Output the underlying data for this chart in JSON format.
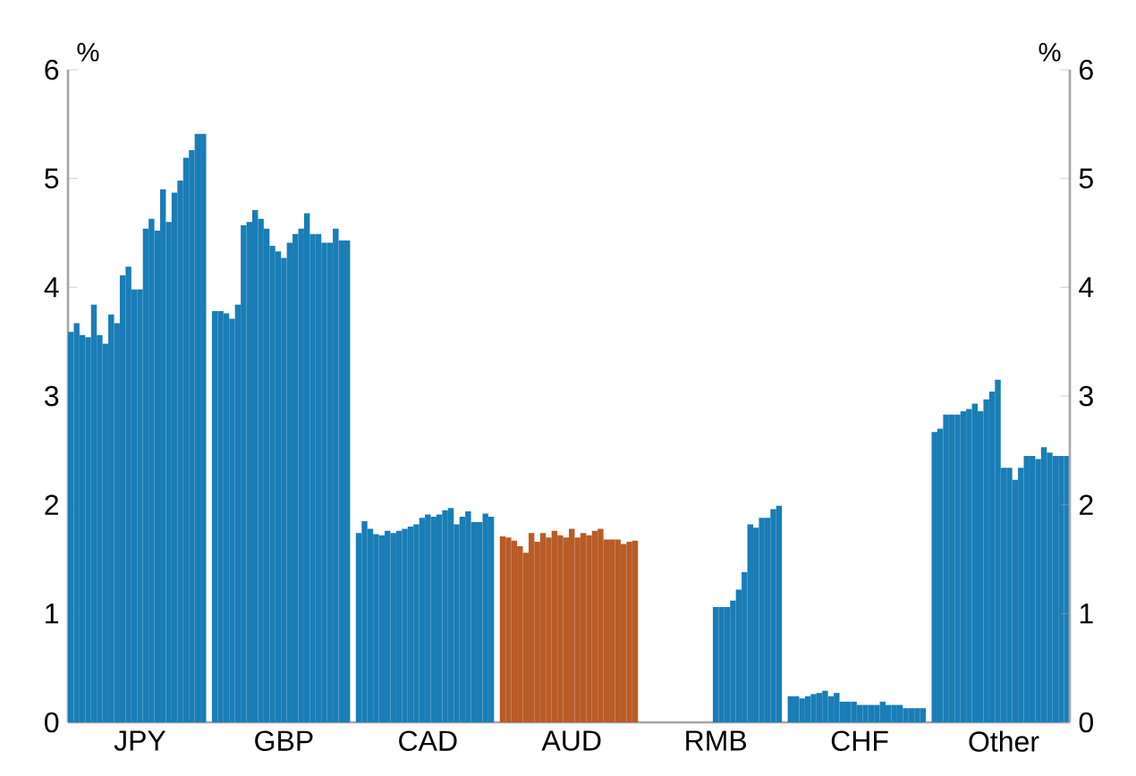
{
  "chart_data": {
    "type": "bar",
    "ylabel": "%",
    "y2label": "%",
    "categories": [
      null,
      null,
      null,
      null,
      null,
      null,
      null,
      null,
      null,
      null,
      null,
      null,
      "JPY",
      null,
      null,
      null,
      null,
      null,
      null,
      null,
      null,
      null,
      null,
      null,
      null,
      null,
      null,
      null,
      null,
      null,
      null,
      null,
      null,
      null,
      null,
      null,
      null,
      "GBP",
      null,
      null,
      null,
      null,
      null,
      null,
      null,
      null,
      null,
      null,
      null,
      null,
      null,
      null,
      null,
      null,
      null,
      null,
      null,
      null,
      null,
      null,
      null,
      null,
      "CAD",
      null,
      null,
      null,
      null,
      null,
      null,
      null,
      null,
      null,
      null,
      null,
      null,
      null,
      null,
      null,
      null,
      null,
      null,
      null,
      null,
      null,
      null,
      null,
      null,
      "AUD",
      null,
      null,
      null,
      null,
      null,
      null,
      null,
      null,
      null,
      null,
      null,
      null,
      null,
      null,
      null,
      null,
      null,
      null,
      null,
      null,
      null,
      null,
      null,
      null,
      "RMB",
      null,
      null,
      null,
      null,
      null,
      null,
      null,
      null,
      null,
      null,
      null,
      null,
      null,
      null,
      null,
      null,
      null,
      null,
      null,
      null,
      null,
      null,
      null,
      null,
      "CHF",
      null,
      null,
      null,
      null,
      null,
      null,
      null,
      null,
      null,
      null,
      null,
      null,
      null,
      null,
      null,
      null,
      null,
      null,
      null,
      null,
      null,
      null,
      null,
      null,
      "Other",
      null,
      null,
      null,
      null,
      null,
      null,
      null,
      null,
      null,
      null,
      null
    ],
    "values": [
      3.59,
      3.67,
      3.56,
      3.54,
      3.84,
      3.56,
      3.48,
      3.75,
      3.67,
      4.11,
      4.19,
      3.98,
      3.98,
      4.54,
      4.63,
      4.52,
      4.9,
      4.6,
      4.87,
      4.98,
      5.19,
      5.26,
      5.41,
      5.41,
      null,
      3.78,
      3.78,
      3.76,
      3.71,
      3.84,
      4.57,
      4.6,
      4.71,
      4.63,
      4.54,
      4.38,
      4.33,
      4.27,
      4.41,
      4.49,
      4.54,
      4.68,
      4.49,
      4.49,
      4.41,
      4.41,
      4.54,
      4.43,
      4.43,
      null,
      1.74,
      1.85,
      1.78,
      1.73,
      1.72,
      1.76,
      1.74,
      1.76,
      1.78,
      1.8,
      1.82,
      1.88,
      1.91,
      1.89,
      1.91,
      1.95,
      1.97,
      1.82,
      1.89,
      1.94,
      1.84,
      1.84,
      1.92,
      1.89,
      null,
      1.71,
      1.7,
      1.67,
      1.62,
      1.56,
      1.74,
      1.66,
      1.74,
      1.7,
      1.76,
      1.72,
      1.7,
      1.78,
      1.7,
      1.74,
      1.72,
      1.76,
      1.78,
      1.68,
      1.68,
      1.68,
      1.64,
      1.66,
      1.67,
      null,
      null,
      null,
      null,
      null,
      null,
      null,
      null,
      null,
      null,
      null,
      null,
      null,
      1.06,
      1.06,
      1.06,
      1.12,
      1.22,
      1.38,
      1.82,
      1.79,
      1.88,
      1.88,
      1.96,
      1.99,
      null,
      0.24,
      0.24,
      0.22,
      0.24,
      0.26,
      0.27,
      0.29,
      0.24,
      0.27,
      0.19,
      0.19,
      0.19,
      0.16,
      0.16,
      0.16,
      0.16,
      0.19,
      0.16,
      0.16,
      0.16,
      0.13,
      0.13,
      0.13,
      0.13,
      null,
      2.67,
      2.7,
      2.83,
      2.83,
      2.83,
      2.86,
      2.88,
      2.93,
      2.86,
      2.97,
      3.04,
      3.15,
      2.34,
      2.34,
      2.23,
      2.34,
      2.45,
      2.45,
      2.42,
      2.53,
      2.48,
      2.45,
      2.45,
      2.45
    ],
    "colors": [
      "#1a7db6",
      "#1a7db6",
      "#1a7db6",
      "#1a7db6",
      "#1a7db6",
      "#1a7db6",
      "#1a7db6",
      "#1a7db6",
      "#1a7db6",
      "#1a7db6",
      "#1a7db6",
      "#1a7db6",
      "#1a7db6",
      "#1a7db6",
      "#1a7db6",
      "#1a7db6",
      "#1a7db6",
      "#1a7db6",
      "#1a7db6",
      "#1a7db6",
      "#1a7db6",
      "#1a7db6",
      "#1a7db6",
      "#1a7db6",
      "#1a7db6",
      "#1a7db6",
      "#1a7db6",
      "#1a7db6",
      "#1a7db6",
      "#1a7db6",
      "#1a7db6",
      "#1a7db6",
      "#1a7db6",
      "#1a7db6",
      "#1a7db6",
      "#1a7db6",
      "#1a7db6",
      "#1a7db6",
      "#1a7db6",
      "#1a7db6",
      "#1a7db6",
      "#1a7db6",
      "#1a7db6",
      "#1a7db6",
      "#1a7db6",
      "#1a7db6",
      "#1a7db6",
      "#1a7db6",
      "#1a7db6",
      "#1a7db6",
      "#1a7db6",
      "#1a7db6",
      "#1a7db6",
      "#1a7db6",
      "#1a7db6",
      "#1a7db6",
      "#1a7db6",
      "#1a7db6",
      "#1a7db6",
      "#1a7db6",
      "#1a7db6",
      "#1a7db6",
      "#1a7db6",
      "#1a7db6",
      "#1a7db6",
      "#1a7db6",
      "#1a7db6",
      "#1a7db6",
      "#1a7db6",
      "#1a7db6",
      "#1a7db6",
      "#1a7db6",
      "#1a7db6",
      "#1a7db6",
      "#1a7db6",
      "#b85b27",
      "#b85b27",
      "#b85b27",
      "#b85b27",
      "#b85b27",
      "#b85b27",
      "#b85b27",
      "#b85b27",
      "#b85b27",
      "#b85b27",
      "#b85b27",
      "#b85b27",
      "#b85b27",
      "#b85b27",
      "#b85b27",
      "#b85b27",
      "#b85b27",
      "#b85b27",
      "#b85b27",
      "#b85b27",
      "#b85b27",
      "#b85b27",
      "#b85b27",
      "#b85b27",
      "#1a7db6",
      "#1a7db6",
      "#1a7db6",
      "#1a7db6",
      "#1a7db6",
      "#1a7db6",
      "#1a7db6",
      "#1a7db6",
      "#1a7db6",
      "#1a7db6",
      "#1a7db6",
      "#1a7db6",
      "#1a7db6",
      "#1a7db6",
      "#1a7db6",
      "#1a7db6",
      "#1a7db6",
      "#1a7db6",
      "#1a7db6",
      "#1a7db6",
      "#1a7db6",
      "#1a7db6",
      "#1a7db6",
      "#1a7db6",
      "#1a7db6",
      "#1a7db6",
      "#1a7db6",
      "#1a7db6",
      "#1a7db6",
      "#1a7db6",
      "#1a7db6",
      "#1a7db6",
      "#1a7db6",
      "#1a7db6",
      "#1a7db6",
      "#1a7db6",
      "#1a7db6",
      "#1a7db6",
      "#1a7db6",
      "#1a7db6",
      "#1a7db6",
      "#1a7db6",
      "#1a7db6",
      "#1a7db6",
      "#1a7db6",
      "#1a7db6",
      "#1a7db6",
      "#1a7db6",
      "#1a7db6",
      "#1a7db6",
      "#1a7db6",
      "#1a7db6",
      "#1a7db6",
      "#1a7db6",
      "#1a7db6",
      "#1a7db6",
      "#1a7db6",
      "#1a7db6",
      "#1a7db6",
      "#1a7db6",
      "#1a7db6",
      "#1a7db6",
      "#1a7db6",
      "#1a7db6",
      "#1a7db6",
      "#1a7db6",
      "#1a7db6",
      "#1a7db6",
      "#1a7db6",
      "#1a7db6",
      "#1a7db6",
      "#1a7db6",
      "#1a7db6",
      "#1a7db6",
      "#1a7db6"
    ],
    "ylim": [
      0,
      6
    ],
    "yticks": [
      0,
      1,
      2,
      3,
      4,
      5,
      6
    ],
    "y2lim": [
      0,
      6
    ],
    "y2ticks": [
      0,
      1,
      2,
      3,
      4,
      5,
      6
    ]
  }
}
